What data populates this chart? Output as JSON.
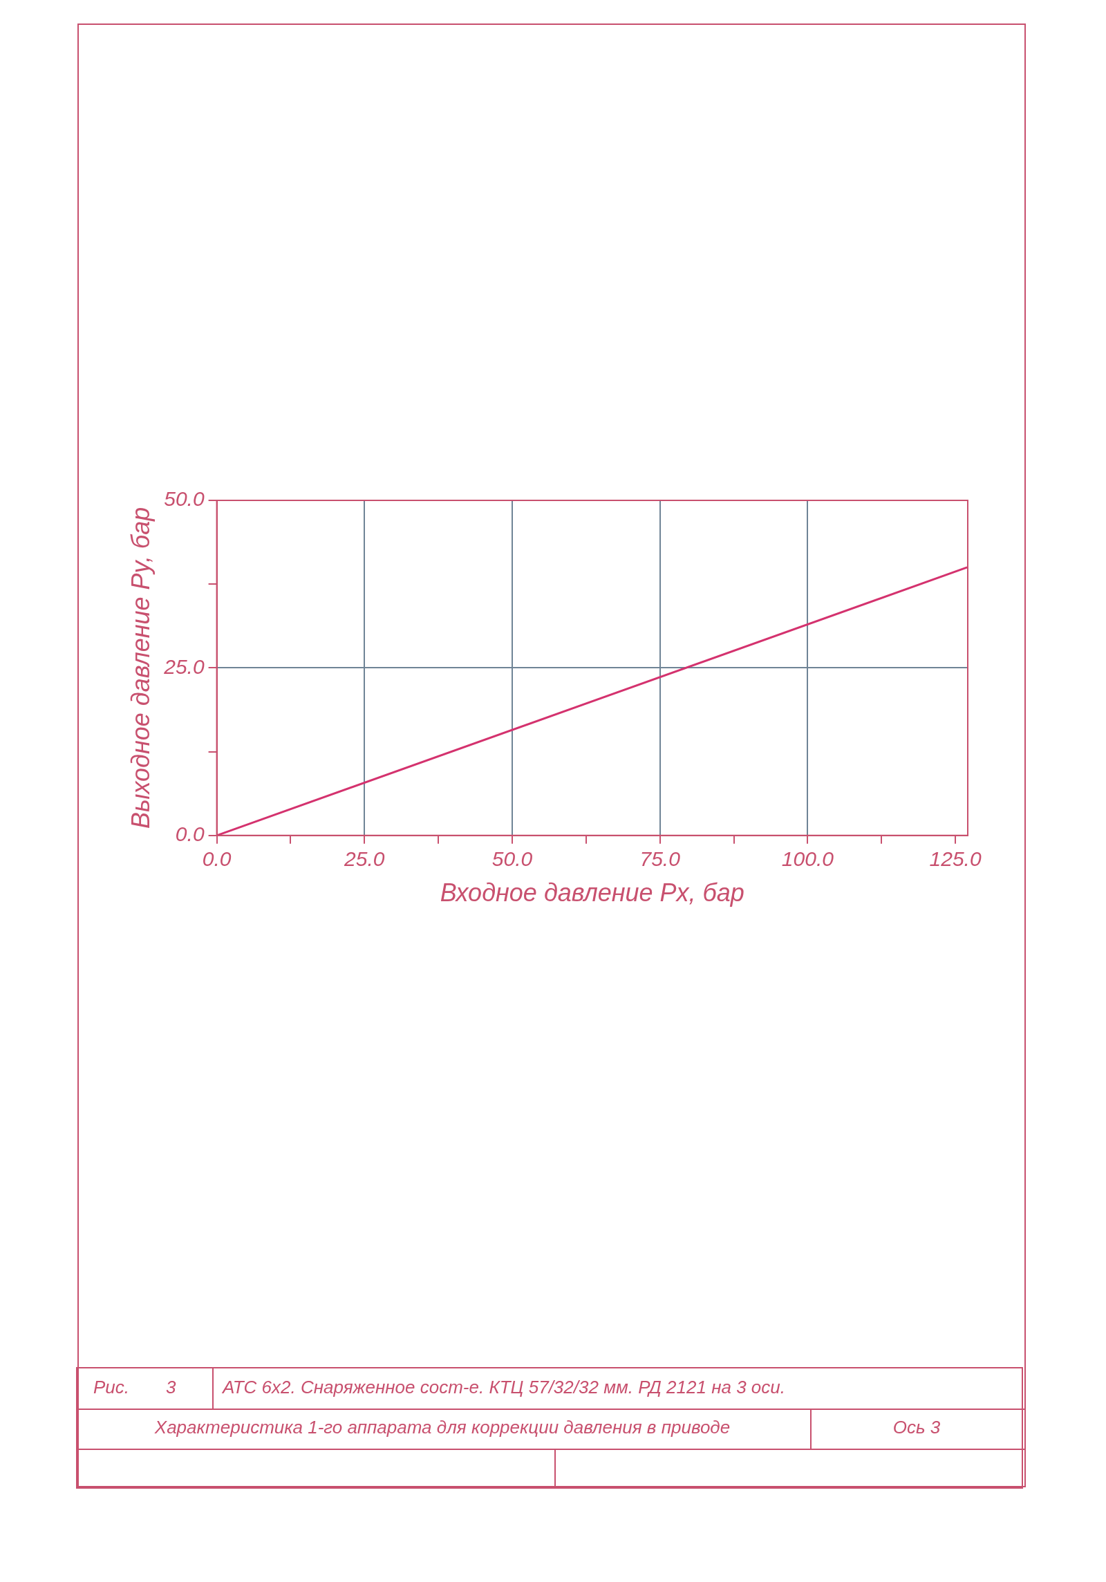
{
  "chart_data": {
    "type": "line",
    "xlabel": "Входное давление Px, бар",
    "ylabel": "Выходное давление Py, бар",
    "x": [
      0,
      127
    ],
    "values": [
      0,
      40
    ],
    "color": "#d4326e",
    "marker": "none",
    "line_style": "solid",
    "grid": true,
    "xlim": [
      0,
      127.1
    ],
    "ylim": [
      0,
      50
    ],
    "xticks": [
      {
        "value": 0,
        "label": "0.0"
      },
      {
        "value": 12.5,
        "label": null
      },
      {
        "value": 25,
        "label": "25.0"
      },
      {
        "value": 37.5,
        "label": null
      },
      {
        "value": 50,
        "label": "50.0"
      },
      {
        "value": 62.5,
        "label": null
      },
      {
        "value": 75,
        "label": "75.0"
      },
      {
        "value": 87.5,
        "label": null
      },
      {
        "value": 100,
        "label": "100.0"
      },
      {
        "value": 112.5,
        "label": null
      },
      {
        "value": 125,
        "label": "125.0"
      }
    ],
    "yticks": [
      {
        "value": 0,
        "label": "0.0"
      },
      {
        "value": 12.5,
        "label": null
      },
      {
        "value": 25,
        "label": "25.0"
      },
      {
        "value": 37.5,
        "label": null
      },
      {
        "value": 50,
        "label": "50.0"
      }
    ],
    "annotations": [
      "Рис.",
      "3",
      "АТС 6x2. Снаряженное сост-е. КТЦ 57/32/32 мм. РД 2121 на 3 оси.",
      "Характеристика 1-го аппарата для коррекции давления в приводе",
      "Ось 3"
    ]
  }
}
